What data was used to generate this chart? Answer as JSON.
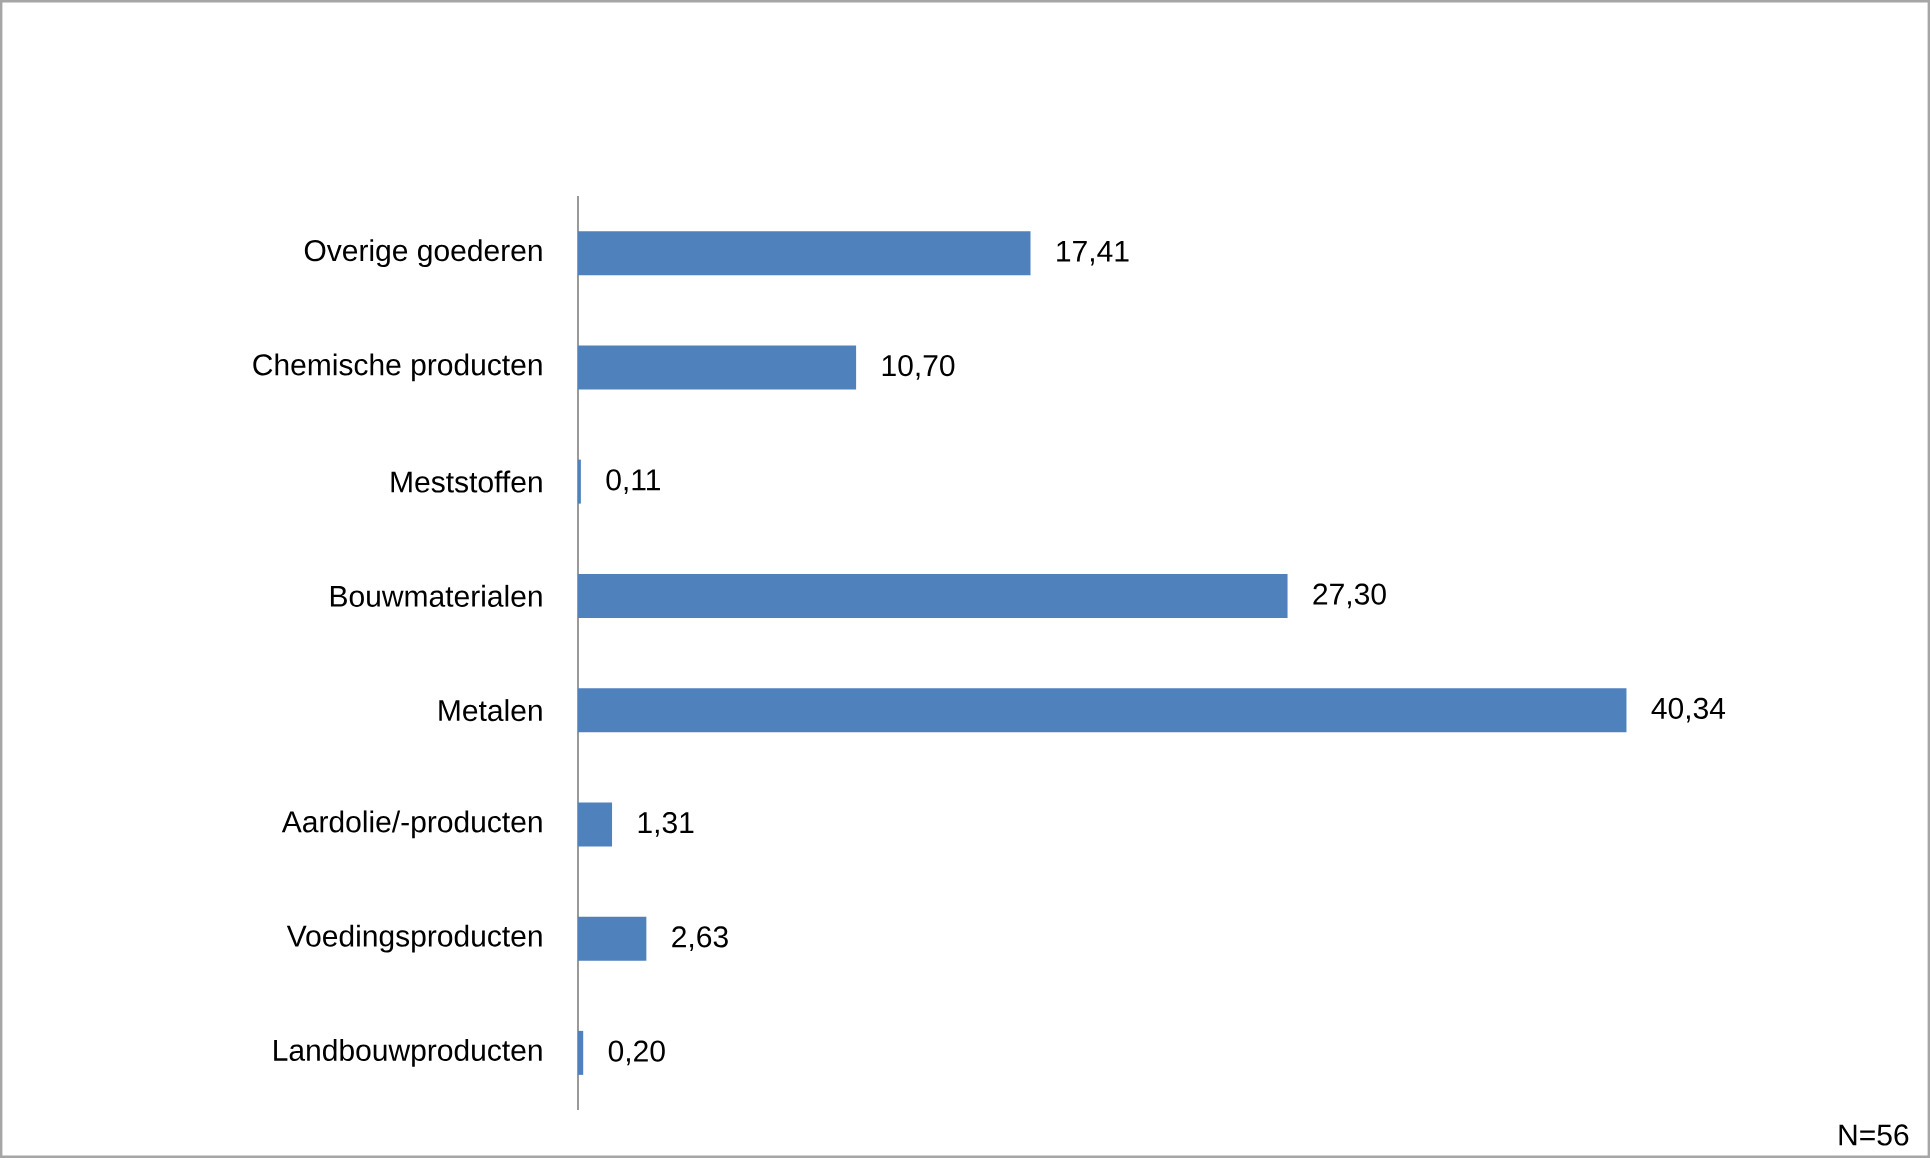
{
  "chart_data": {
    "type": "bar",
    "orientation": "horizontal",
    "categories": [
      "Overige goederen",
      "Chemische producten",
      "Meststoffen",
      "Bouwmaterialen",
      "Metalen",
      "Aardolie/-producten",
      "Voedingsproducten",
      "Landbouwproducten"
    ],
    "values": [
      17.41,
      10.7,
      0.11,
      27.3,
      40.34,
      1.31,
      2.63,
      0.2
    ],
    "value_labels": [
      "17,41",
      "10,70",
      "0,11",
      "27,30",
      "40,34",
      "1,31",
      "2,63",
      "0,20"
    ],
    "color": "#4f81bd",
    "annotations": [
      "N=56"
    ]
  }
}
